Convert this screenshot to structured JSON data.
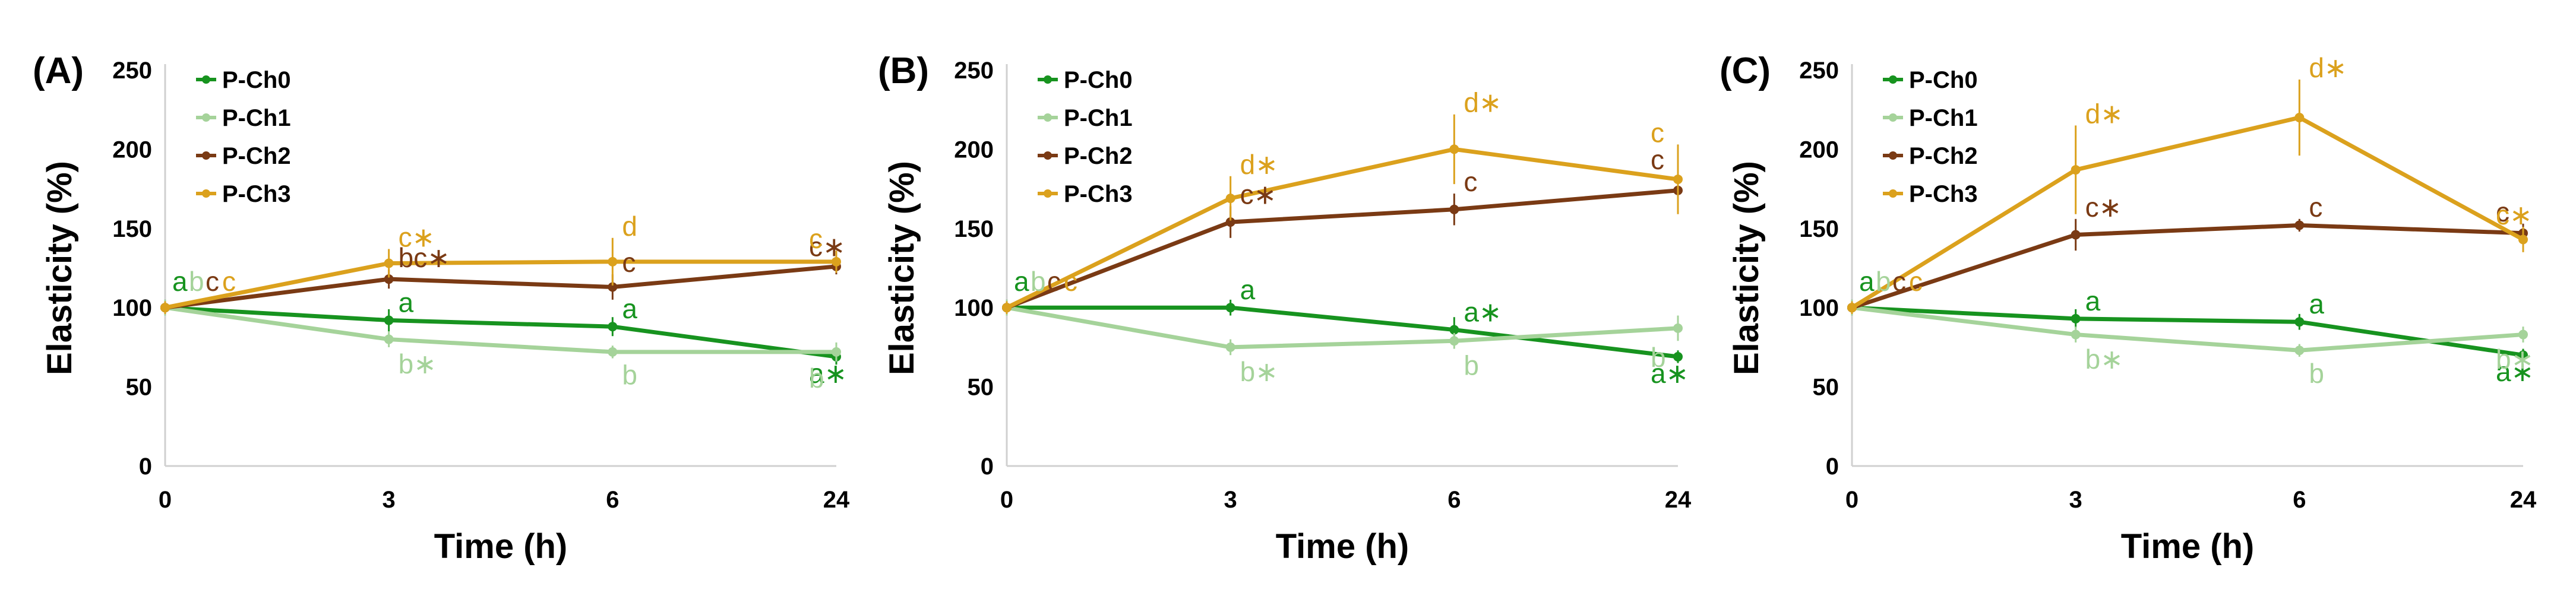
{
  "chart_data": [
    {
      "type": "line",
      "panel_label": "(A)",
      "categories": [
        "0",
        "3",
        "6",
        "24"
      ],
      "xlabel": "Time (h)",
      "ylabel": "Elasticity (%)",
      "ylim": [
        0,
        250
      ],
      "yticks": [
        "0",
        "50",
        "100",
        "150",
        "200",
        "250"
      ],
      "legend_position": "top-left",
      "series": [
        {
          "name": "P-Ch0",
          "color": "#17931f",
          "values": [
            100,
            92,
            88,
            69
          ],
          "errors": [
            5,
            7,
            6,
            5
          ],
          "labels": [
            {
              "i": 0,
              "text": "a",
              "dx": 0,
              "dy": 0
            },
            {
              "i": 1,
              "text": "a",
              "dx": 0,
              "dy": 0
            },
            {
              "i": 2,
              "text": "a",
              "dx": 0,
              "dy": 0
            },
            {
              "i": 3,
              "text": "a",
              "star": true,
              "dx": 0,
              "dy": 0
            }
          ]
        },
        {
          "name": "P-Ch1",
          "color": "#a5d39a",
          "values": [
            100,
            80,
            72,
            72
          ],
          "errors": [
            5,
            5,
            4,
            6
          ],
          "labels": [
            {
              "i": 0,
              "text": "b"
            },
            {
              "i": 1,
              "text": "b",
              "star": true
            },
            {
              "i": 2,
              "text": "b"
            },
            {
              "i": 3,
              "text": "b"
            }
          ]
        },
        {
          "name": "P-Ch2",
          "color": "#7a3a14",
          "values": [
            100,
            118,
            113,
            126
          ],
          "errors": [
            4,
            6,
            8,
            5
          ],
          "labels": [
            {
              "i": 0,
              "text": "c"
            },
            {
              "i": 1,
              "text": "bc",
              "star": true
            },
            {
              "i": 2,
              "text": "c"
            },
            {
              "i": 3,
              "text": "c",
              "star": true
            }
          ]
        },
        {
          "name": "P-Ch3",
          "color": "#dba11d",
          "values": [
            100,
            128,
            129,
            129
          ],
          "errors": [
            4,
            9,
            15,
            7
          ],
          "labels": [
            {
              "i": 0,
              "text": "c"
            },
            {
              "i": 1,
              "text": "c",
              "star": true
            },
            {
              "i": 2,
              "text": "d"
            },
            {
              "i": 3,
              "text": "c"
            }
          ]
        }
      ]
    },
    {
      "type": "line",
      "panel_label": "(B)",
      "categories": [
        "0",
        "3",
        "6",
        "24"
      ],
      "xlabel": "Time (h)",
      "ylabel": "Elasticity (%)",
      "ylim": [
        0,
        250
      ],
      "yticks": [
        "0",
        "50",
        "100",
        "150",
        "200",
        "250"
      ],
      "legend_position": "top-left",
      "series": [
        {
          "name": "P-Ch0",
          "color": "#17931f",
          "values": [
            100,
            100,
            86,
            69
          ],
          "errors": [
            5,
            5,
            8,
            4
          ],
          "labels": [
            {
              "i": 0,
              "text": "a"
            },
            {
              "i": 1,
              "text": "a"
            },
            {
              "i": 2,
              "text": "a",
              "star": true
            },
            {
              "i": 3,
              "text": "a",
              "star": true
            }
          ]
        },
        {
          "name": "P-Ch1",
          "color": "#a5d39a",
          "values": [
            100,
            75,
            79,
            87
          ],
          "errors": [
            5,
            5,
            5,
            8
          ],
          "labels": [
            {
              "i": 0,
              "text": "b"
            },
            {
              "i": 1,
              "text": "b",
              "star": true
            },
            {
              "i": 2,
              "text": "b"
            },
            {
              "i": 3,
              "text": "b"
            }
          ]
        },
        {
          "name": "P-Ch2",
          "color": "#7a3a14",
          "values": [
            100,
            154,
            162,
            174
          ],
          "errors": [
            4,
            10,
            10,
            12
          ],
          "labels": [
            {
              "i": 0,
              "text": "c"
            },
            {
              "i": 1,
              "text": "c",
              "star": true
            },
            {
              "i": 2,
              "text": "c"
            },
            {
              "i": 3,
              "text": "c"
            }
          ]
        },
        {
          "name": "P-Ch3",
          "color": "#dba11d",
          "values": [
            100,
            169,
            200,
            181
          ],
          "errors": [
            4,
            14,
            22,
            22
          ],
          "labels": [
            {
              "i": 0,
              "text": "c"
            },
            {
              "i": 1,
              "text": "d",
              "star": true
            },
            {
              "i": 2,
              "text": "d",
              "star": true
            },
            {
              "i": 3,
              "text": "c"
            }
          ]
        }
      ]
    },
    {
      "type": "line",
      "panel_label": "(C)",
      "categories": [
        "0",
        "3",
        "6",
        "24"
      ],
      "xlabel": "Time (h)",
      "ylabel": "Elasticity (%)",
      "ylim": [
        0,
        250
      ],
      "yticks": [
        "0",
        "50",
        "100",
        "150",
        "200",
        "250"
      ],
      "legend_position": "top-left",
      "series": [
        {
          "name": "P-Ch0",
          "color": "#17931f",
          "values": [
            100,
            93,
            91,
            70
          ],
          "errors": [
            5,
            6,
            5,
            4
          ],
          "labels": [
            {
              "i": 0,
              "text": "a"
            },
            {
              "i": 1,
              "text": "a"
            },
            {
              "i": 2,
              "text": "a"
            },
            {
              "i": 3,
              "text": "a",
              "star": true
            }
          ]
        },
        {
          "name": "P-Ch1",
          "color": "#a5d39a",
          "values": [
            100,
            83,
            73,
            83
          ],
          "errors": [
            5,
            5,
            4,
            5
          ],
          "labels": [
            {
              "i": 0,
              "text": "b"
            },
            {
              "i": 1,
              "text": "b",
              "star": true
            },
            {
              "i": 2,
              "text": "b"
            },
            {
              "i": 3,
              "text": "b",
              "star": true
            }
          ]
        },
        {
          "name": "P-Ch2",
          "color": "#7a3a14",
          "values": [
            100,
            146,
            152,
            147
          ],
          "errors": [
            4,
            10,
            4,
            6
          ],
          "labels": [
            {
              "i": 0,
              "text": "c"
            },
            {
              "i": 1,
              "text": "c",
              "star": true
            },
            {
              "i": 2,
              "text": "c"
            },
            {
              "i": 3,
              "text": "c"
            }
          ]
        },
        {
          "name": "P-Ch3",
          "color": "#dba11d",
          "values": [
            100,
            187,
            220,
            143
          ],
          "errors": [
            4,
            28,
            24,
            8
          ],
          "labels": [
            {
              "i": 0,
              "text": "c"
            },
            {
              "i": 1,
              "text": "d",
              "star": true
            },
            {
              "i": 2,
              "text": "d",
              "star": true
            },
            {
              "i": 3,
              "text": "c",
              "star": true
            }
          ]
        }
      ]
    }
  ]
}
